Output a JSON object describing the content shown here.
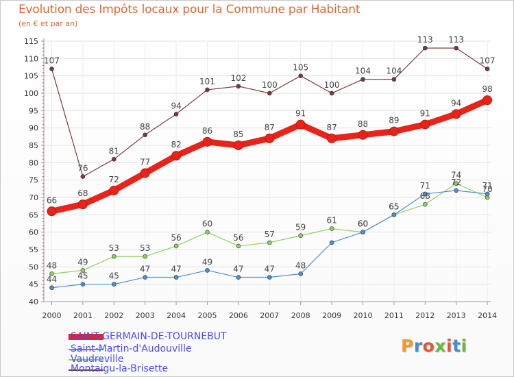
{
  "title": "Evolution des Impôts locaux pour la Commune par Habitant",
  "subtitle": "(en € et par an)",
  "brand": {
    "name": "Proxiti",
    "letters": [
      "P",
      "r",
      "o",
      "x",
      "i",
      "t",
      "i"
    ],
    "colors": [
      "#f29a2e",
      "#3f8ed8",
      "#e4572e",
      "#69b83b",
      "#e4572e",
      "#3f8ed8",
      "#69b83b"
    ]
  },
  "chart_data": {
    "type": "line",
    "title": "Evolution des Impôts locaux pour la Commune par Habitant",
    "ylabel": "(en € et par an)",
    "xlabel": "",
    "x": [
      2000,
      2001,
      2002,
      2003,
      2004,
      2005,
      2006,
      2007,
      2008,
      2009,
      2010,
      2011,
      2012,
      2013,
      2014
    ],
    "ylim": [
      40,
      115
    ],
    "yticks": [
      40,
      45,
      50,
      55,
      60,
      65,
      70,
      75,
      80,
      85,
      90,
      95,
      100,
      105,
      110,
      115
    ],
    "grid": true,
    "legend_position": "bottom-left",
    "series": [
      {
        "name": "SAINT-GERMAIN-DE-TOURNEBUT",
        "color": "#e8231a",
        "values": [
          66,
          68,
          72,
          77,
          82,
          86,
          85,
          87,
          91,
          87,
          88,
          89,
          91,
          94,
          98
        ]
      },
      {
        "name": "Saint-Martin-d'Audouville",
        "color": "#4d8fd1",
        "values": [
          44,
          45,
          45,
          47,
          47,
          49,
          47,
          47,
          48,
          57,
          60,
          65,
          71,
          72,
          71
        ]
      },
      {
        "name": "Vaudreville",
        "color": "#8fd160",
        "values": [
          48,
          49,
          53,
          53,
          56,
          60,
          56,
          57,
          59,
          61,
          60,
          65,
          68,
          74,
          70
        ]
      },
      {
        "name": "Montaigu-la-Brisette",
        "color": "#7a3b3b",
        "values": [
          107,
          76,
          81,
          88,
          94,
          101,
          102,
          100,
          105,
          100,
          104,
          104,
          113,
          113,
          107
        ]
      }
    ],
    "labels": [
      {
        "series": 0,
        "text": [
          "66",
          "68",
          "72",
          "77",
          "82",
          "86",
          "85",
          "87",
          "91",
          "87",
          "88",
          "89",
          "91",
          "94",
          "98"
        ]
      },
      {
        "series": 1,
        "text": [
          "44",
          "45",
          "45",
          "47",
          "47",
          "49",
          "47",
          "47",
          "48",
          "",
          "",
          "",
          "",
          "",
          "71"
        ]
      },
      {
        "series": 2,
        "text": [
          "48",
          "49",
          "53",
          "53",
          "56",
          "60",
          "56",
          "57",
          "59",
          "61",
          "60",
          "65",
          "68",
          "74",
          "70"
        ]
      },
      {
        "series": 3,
        "text": [
          "107",
          "76",
          "81",
          "88",
          "94",
          "101",
          "102",
          "100",
          "105",
          "100",
          "104",
          "104",
          "113",
          "113",
          "107"
        ]
      }
    ],
    "extra_labels": [
      {
        "series": 1,
        "index": 10,
        "text": "60"
      },
      {
        "series": 1,
        "index": 11,
        "text": "65"
      },
      {
        "series": 1,
        "index": 12,
        "text": "71"
      },
      {
        "series": 1,
        "index": 13,
        "text": "72"
      }
    ]
  }
}
